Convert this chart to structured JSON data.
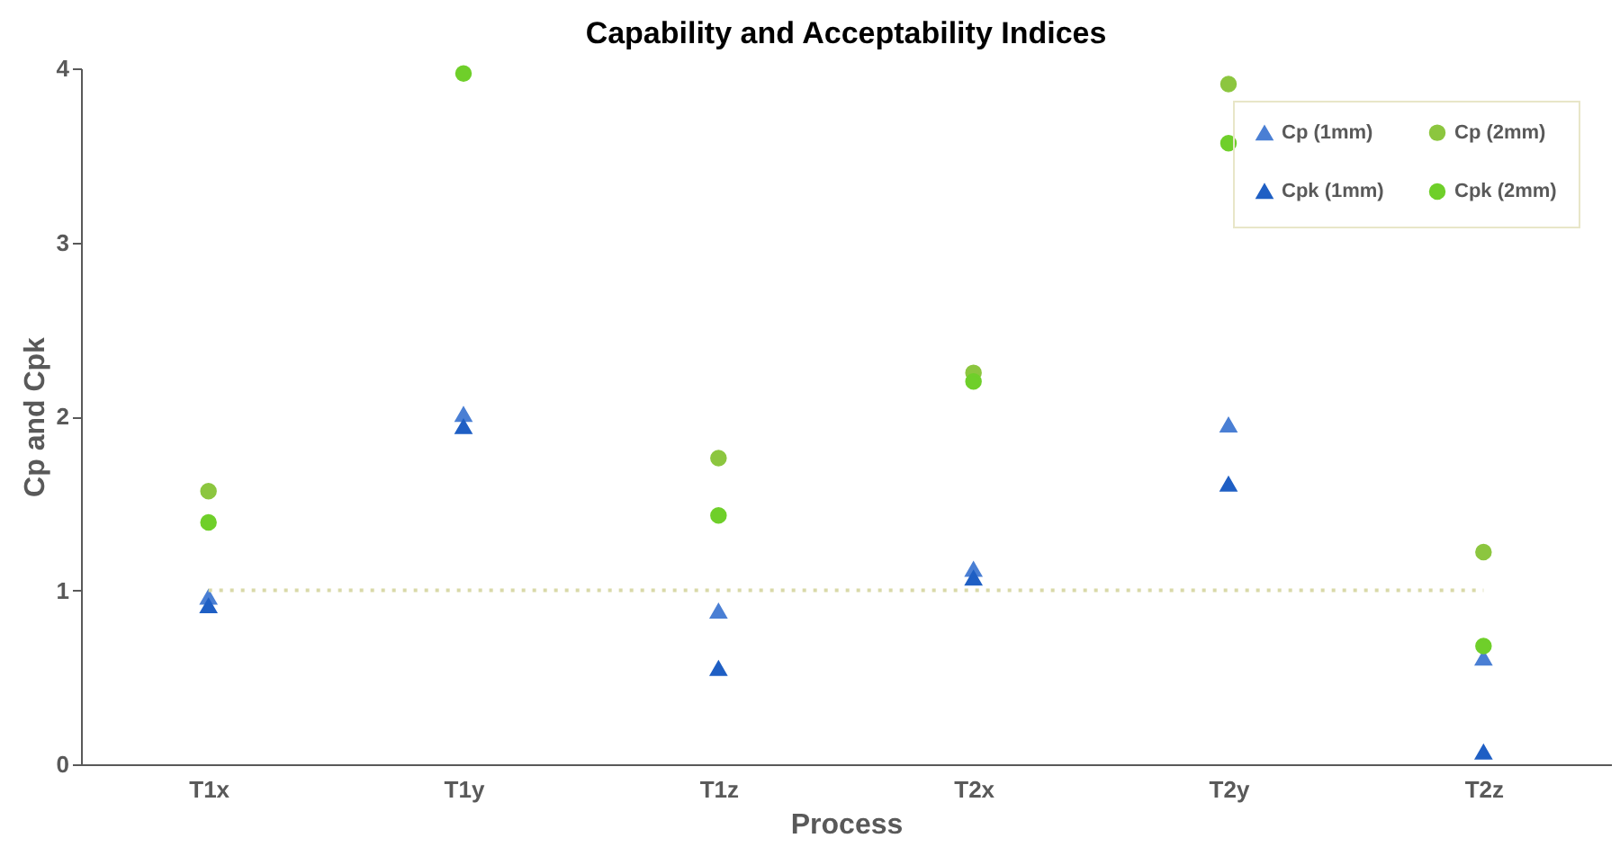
{
  "chart_data": {
    "type": "scatter",
    "title": "Capability and Acceptability Indices",
    "xlabel": "Process",
    "ylabel": "Cp and Cpk",
    "categories": [
      "T1x",
      "T1y",
      "T1z",
      "T2x",
      "T2y",
      "T2z"
    ],
    "series": [
      {
        "name": "Cp (1mm)",
        "color": "#4a7fd4",
        "marker": "triangle",
        "values": [
          0.96,
          2.01,
          0.88,
          1.12,
          1.95,
          0.61
        ]
      },
      {
        "name": "Cpk (1mm)",
        "color": "#1f5fc4",
        "marker": "triangle",
        "values": [
          0.91,
          1.94,
          0.55,
          1.07,
          1.61,
          0.07
        ]
      },
      {
        "name": "Cp (2mm)",
        "color": "#8cc63f",
        "marker": "circle",
        "values": [
          1.57,
          null,
          1.76,
          2.25,
          3.91,
          1.22
        ]
      },
      {
        "name": "Cpk (2mm)",
        "color": "#6fcf2a",
        "marker": "circle",
        "values": [
          1.39,
          3.97,
          1.43,
          2.2,
          3.57,
          0.68
        ]
      }
    ],
    "ylim": [
      0,
      4
    ],
    "yticks": [
      0,
      1,
      2,
      3,
      4
    ],
    "grid": false,
    "legend": "top right",
    "ref_lines": [
      {
        "axis": "y",
        "value": 1,
        "color": "#d9d9a8",
        "line_style": "dotted"
      }
    ]
  }
}
